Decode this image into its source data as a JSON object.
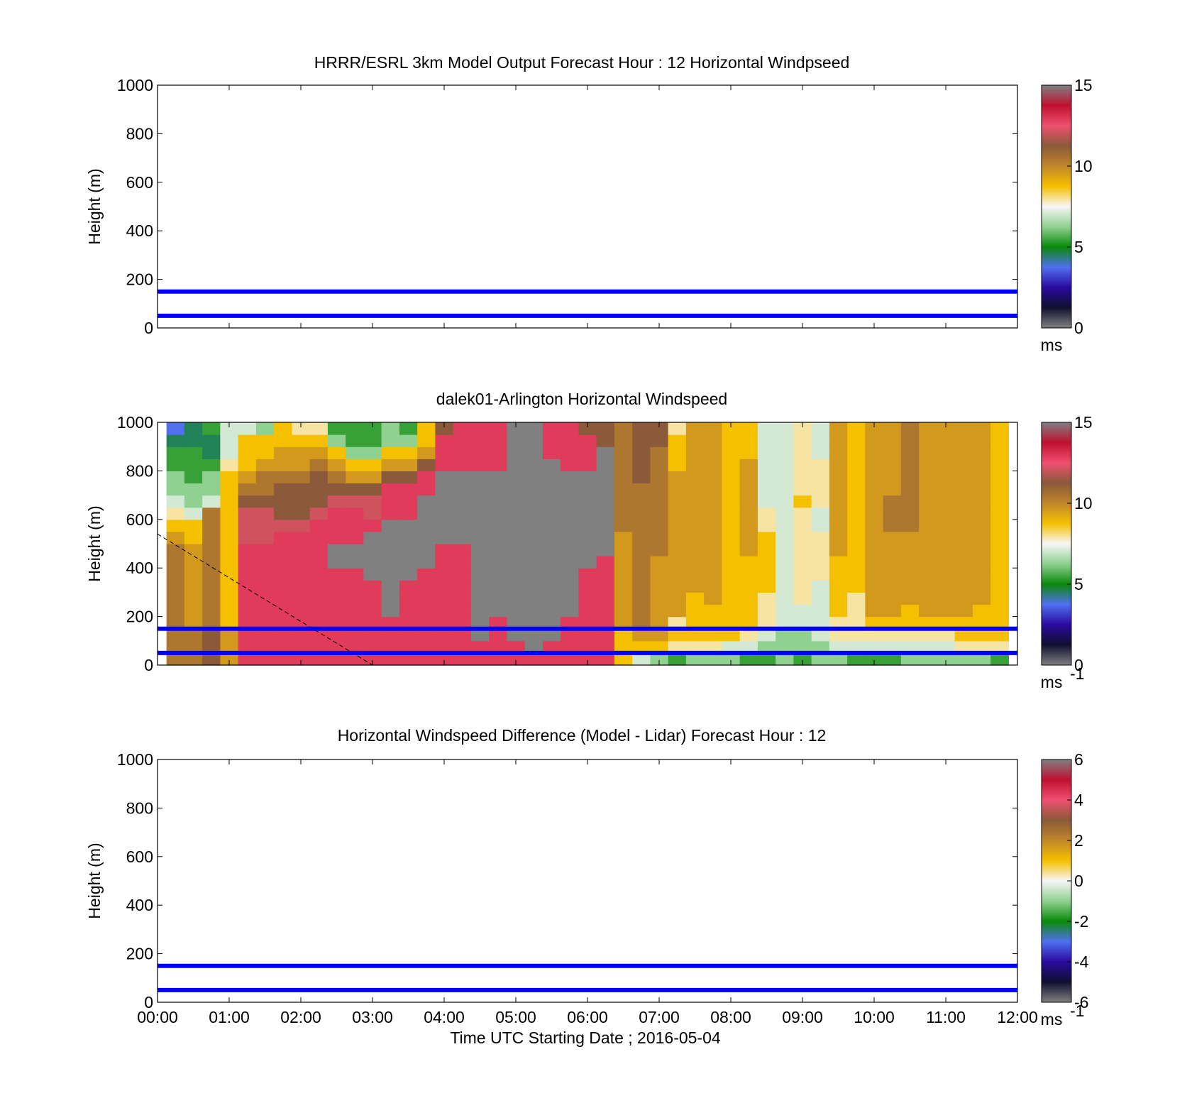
{
  "colors": {
    "background": "#ffffff",
    "axis": "#000000",
    "marker_lines": "#0000ff",
    "missing": "#808080"
  },
  "chart_data": [
    {
      "type": "heatmap",
      "title": "HRRR/ESRL 3km Model Output   Forecast Hour : 12 Horizontal Windpseed",
      "ylabel": "Height (m)",
      "xlabel": "",
      "xlim": [
        "00:00",
        "12:00"
      ],
      "ylim": [
        0,
        1000
      ],
      "yticks": [
        "0",
        "200",
        "400",
        "600",
        "800",
        "1000"
      ],
      "reference_lines_m": [
        50,
        150
      ],
      "colorbar": {
        "range": [
          0,
          15
        ],
        "ticks": [
          "0",
          "5",
          "10",
          "15"
        ],
        "unit": "ms",
        "unit_superscript": "",
        "stops": [
          "#808080",
          "#101030",
          "#2a0aa0",
          "#5070f0",
          "#0a8a0a",
          "#90d090",
          "#f6f6f6",
          "#f5c000",
          "#c0862a",
          "#8a5a3a",
          "#f05070",
          "#c01030",
          "#808080"
        ]
      },
      "values": []
    },
    {
      "type": "heatmap",
      "title": "dalek01-Arlington  Horizontal Windspeed",
      "ylabel": "Height (m)",
      "xlabel": "",
      "xlim": [
        "00:00",
        "12:00"
      ],
      "ylim": [
        0,
        1000
      ],
      "yticks": [
        "0",
        "200",
        "400",
        "600",
        "800",
        "1000"
      ],
      "reference_lines_m": [
        50,
        150
      ],
      "colorbar": {
        "range": [
          0,
          15
        ],
        "ticks": [
          "0",
          "5",
          "10",
          "15"
        ],
        "unit": "ms",
        "unit_superscript": "-1",
        "stops": [
          "#808080",
          "#101030",
          "#2a0aa0",
          "#5070f0",
          "#0a8a0a",
          "#90d090",
          "#f6f6f6",
          "#f5c000",
          "#c0862a",
          "#8a5a3a",
          "#f05070",
          "#c01030",
          "#808080"
        ]
      },
      "time_hours": [
        0.25,
        0.5,
        0.75,
        1.0,
        1.25,
        1.5,
        1.75,
        2.0,
        2.25,
        2.5,
        2.75,
        3.0,
        3.25,
        3.5,
        3.75,
        4.0,
        4.25,
        4.5,
        4.75,
        5.0,
        5.25,
        5.5,
        5.75,
        6.0,
        6.25,
        6.5,
        6.75,
        7.0,
        7.25,
        7.5,
        7.75,
        8.0,
        8.25,
        8.5,
        8.75,
        9.0,
        9.25,
        9.5,
        9.75,
        10.0,
        10.25,
        10.5,
        10.75,
        11.0,
        11.25,
        11.5,
        11.75
      ],
      "height_m": [
        25,
        75,
        125,
        175,
        225,
        275,
        325,
        375,
        425,
        475,
        525,
        575,
        625,
        675,
        725,
        775,
        825,
        875,
        925,
        975
      ],
      "windspeed_profiles_ms": [
        [
          11,
          11,
          11,
          11,
          11,
          11,
          11,
          11,
          11,
          11,
          10,
          9,
          8,
          7,
          6,
          6,
          5,
          5,
          4,
          3
        ],
        [
          11,
          11,
          11,
          10,
          10,
          10,
          10,
          10,
          10,
          10,
          9,
          9,
          7,
          6,
          6,
          5,
          5,
          5,
          4,
          4
        ],
        [
          12,
          12,
          12,
          11,
          11,
          11,
          11,
          11,
          11,
          11,
          11,
          11,
          11,
          7,
          6,
          6,
          5,
          4,
          4,
          5
        ],
        [
          10,
          10,
          10,
          9,
          9,
          9,
          9,
          9,
          9,
          9,
          9,
          9,
          9,
          9,
          9,
          9,
          8,
          7,
          7,
          7
        ],
        [
          14,
          14,
          14,
          14,
          14,
          14,
          14,
          14,
          14,
          14,
          13,
          13,
          13,
          12,
          11,
          10,
          9,
          9,
          9,
          7
        ],
        [
          14,
          14,
          14,
          14,
          14,
          14,
          14,
          14,
          14,
          14,
          13,
          13,
          13,
          12,
          11,
          11,
          10,
          9,
          9,
          6
        ],
        [
          14,
          14,
          14,
          14,
          14,
          14,
          14,
          14,
          14,
          14,
          14,
          13,
          12,
          12,
          12,
          11,
          10,
          10,
          9,
          9
        ],
        [
          14,
          14,
          14,
          14,
          14,
          14,
          14,
          14,
          14,
          14,
          14,
          13,
          12,
          12,
          12,
          11,
          10,
          10,
          9,
          8
        ],
        [
          14,
          14,
          14,
          14,
          14,
          14,
          14,
          14,
          14,
          14,
          14,
          14,
          13,
          12,
          12,
          12,
          11,
          10,
          9,
          8
        ],
        [
          14,
          14,
          14,
          14,
          14,
          14,
          14,
          14,
          null,
          null,
          14,
          14,
          14,
          13,
          12,
          11,
          10,
          9,
          6,
          5
        ],
        [
          14,
          14,
          14,
          14,
          14,
          14,
          14,
          14,
          null,
          null,
          14,
          14,
          14,
          13,
          12,
          10,
          9,
          6,
          5,
          5
        ],
        [
          14,
          14,
          14,
          14,
          14,
          14,
          14,
          null,
          null,
          null,
          null,
          14,
          13,
          13,
          12,
          10,
          9,
          6,
          5,
          5
        ],
        [
          14,
          14,
          14,
          14,
          null,
          null,
          null,
          null,
          null,
          null,
          null,
          null,
          14,
          14,
          14,
          12,
          10,
          9,
          6,
          6
        ],
        [
          14,
          14,
          14,
          14,
          14,
          14,
          14,
          null,
          null,
          null,
          null,
          null,
          14,
          14,
          14,
          12,
          10,
          9,
          6,
          5
        ],
        [
          14,
          14,
          14,
          14,
          14,
          14,
          14,
          14,
          null,
          null,
          null,
          null,
          null,
          null,
          14,
          14,
          12,
          10,
          9,
          9
        ],
        [
          14,
          14,
          14,
          14,
          14,
          14,
          14,
          14,
          14,
          14,
          null,
          null,
          null,
          null,
          null,
          null,
          14,
          14,
          14,
          12
        ],
        [
          14,
          14,
          14,
          14,
          14,
          14,
          14,
          14,
          14,
          14,
          null,
          null,
          null,
          null,
          null,
          null,
          14,
          14,
          14,
          14
        ],
        [
          14,
          14,
          null,
          null,
          null,
          null,
          null,
          null,
          null,
          null,
          null,
          null,
          null,
          null,
          null,
          null,
          14,
          14,
          14,
          14
        ],
        [
          14,
          14,
          14,
          14,
          null,
          null,
          null,
          null,
          null,
          null,
          null,
          null,
          null,
          null,
          null,
          null,
          14,
          14,
          14,
          14
        ],
        [
          14,
          14,
          null,
          null,
          null,
          null,
          null,
          null,
          null,
          null,
          null,
          null,
          null,
          null,
          null,
          null,
          null,
          null,
          null,
          null
        ],
        [
          14,
          null,
          null,
          null,
          null,
          null,
          null,
          null,
          null,
          null,
          null,
          null,
          null,
          null,
          null,
          null,
          null,
          null,
          null,
          null
        ],
        [
          14,
          14,
          null,
          null,
          null,
          null,
          null,
          null,
          null,
          null,
          null,
          null,
          null,
          null,
          null,
          null,
          null,
          14,
          14,
          14
        ],
        [
          14,
          14,
          14,
          14,
          null,
          null,
          null,
          null,
          null,
          null,
          null,
          null,
          null,
          null,
          null,
          null,
          14,
          14,
          14,
          14
        ],
        [
          14,
          14,
          14,
          14,
          14,
          14,
          14,
          14,
          null,
          null,
          null,
          null,
          null,
          null,
          null,
          null,
          14,
          14,
          14,
          12
        ],
        [
          14,
          14,
          14,
          14,
          14,
          14,
          14,
          14,
          14,
          null,
          null,
          null,
          null,
          null,
          null,
          null,
          null,
          null,
          12,
          12
        ],
        [
          9,
          9,
          9,
          10,
          10,
          10,
          10,
          10,
          10,
          10,
          10,
          11,
          11,
          11,
          11,
          11,
          11,
          11,
          11,
          11
        ],
        [
          7,
          9,
          10,
          11,
          11,
          11,
          11,
          11,
          11,
          11,
          11,
          11,
          11,
          11,
          11,
          12,
          12,
          12,
          12,
          12
        ],
        [
          6,
          9,
          10,
          10,
          10,
          10,
          10,
          10,
          10,
          11,
          11,
          11,
          11,
          11,
          11,
          11,
          11,
          11,
          12,
          12
        ],
        [
          5,
          8,
          9,
          8,
          10,
          10,
          10,
          10,
          10,
          10,
          10,
          10,
          10,
          10,
          10,
          10,
          9,
          9,
          9,
          8
        ],
        [
          6,
          8,
          9,
          9,
          9,
          9,
          10,
          10,
          10,
          10,
          10,
          10,
          10,
          10,
          10,
          10,
          10,
          10,
          10,
          10
        ],
        [
          6,
          8,
          9,
          9,
          9,
          10,
          10,
          10,
          10,
          10,
          10,
          10,
          10,
          10,
          10,
          10,
          10,
          10,
          10,
          10
        ],
        [
          6,
          7,
          9,
          9,
          9,
          9,
          9,
          9,
          9,
          9,
          9,
          9,
          9,
          9,
          9,
          9,
          9,
          9,
          9,
          9
        ],
        [
          5,
          7,
          8,
          9,
          9,
          9,
          9,
          9,
          9,
          10,
          10,
          10,
          10,
          10,
          10,
          10,
          10,
          9,
          9,
          9
        ],
        [
          5,
          6,
          7,
          8,
          8,
          8,
          9,
          9,
          9,
          9,
          9,
          8,
          8,
          7,
          7,
          7,
          7,
          7,
          7,
          7
        ],
        [
          6,
          6,
          6,
          7,
          7,
          7,
          7,
          7,
          7,
          7,
          7,
          7,
          7,
          7,
          7,
          7,
          7,
          7,
          7,
          7
        ],
        [
          5,
          6,
          6,
          7,
          7,
          8,
          8,
          8,
          8,
          8,
          8,
          8,
          8,
          9,
          8,
          8,
          8,
          8,
          8,
          8
        ],
        [
          6,
          6,
          7,
          7,
          7,
          7,
          7,
          8,
          8,
          8,
          8,
          7,
          7,
          8,
          8,
          8,
          8,
          7,
          7,
          7
        ],
        [
          6,
          7,
          8,
          8,
          9,
          9,
          9,
          9,
          9,
          10,
          10,
          10,
          10,
          10,
          10,
          10,
          10,
          10,
          10,
          10
        ],
        [
          5,
          7,
          8,
          8,
          8,
          8,
          9,
          9,
          9,
          9,
          9,
          9,
          9,
          9,
          9,
          9,
          9,
          9,
          9,
          9
        ],
        [
          5,
          7,
          8,
          9,
          10,
          10,
          10,
          10,
          10,
          10,
          10,
          10,
          10,
          10,
          10,
          10,
          10,
          10,
          10,
          10
        ],
        [
          5,
          7,
          8,
          9,
          10,
          10,
          10,
          10,
          10,
          10,
          10,
          11,
          11,
          11,
          10,
          10,
          10,
          10,
          10,
          10
        ],
        [
          6,
          7,
          8,
          9,
          9,
          10,
          10,
          10,
          10,
          10,
          10,
          11,
          11,
          11,
          11,
          11,
          11,
          11,
          11,
          11
        ],
        [
          6,
          7,
          8,
          9,
          10,
          10,
          10,
          10,
          10,
          10,
          10,
          10,
          10,
          10,
          10,
          10,
          10,
          10,
          10,
          10
        ],
        [
          6,
          7,
          8,
          9,
          10,
          10,
          10,
          10,
          10,
          10,
          10,
          10,
          10,
          10,
          10,
          10,
          10,
          10,
          10,
          10
        ],
        [
          6,
          8,
          9,
          9,
          10,
          10,
          10,
          10,
          10,
          10,
          10,
          10,
          10,
          10,
          10,
          10,
          10,
          10,
          10,
          10
        ],
        [
          6,
          8,
          9,
          9,
          9,
          10,
          10,
          10,
          10,
          10,
          10,
          10,
          10,
          10,
          10,
          10,
          10,
          10,
          10,
          10
        ],
        [
          5,
          8,
          9,
          9,
          9,
          9,
          9,
          9,
          9,
          9,
          9,
          9,
          9,
          9,
          9,
          9,
          9,
          9,
          9,
          9
        ]
      ],
      "dashed_line": {
        "from": {
          "time": "00:00",
          "height_m": 540
        },
        "to": {
          "time": "03:00",
          "height_m": 0
        }
      }
    },
    {
      "type": "heatmap",
      "title": "Horizontal Windspeed Difference (Model - Lidar) Forecast Hour : 12",
      "ylabel": "Height (m)",
      "xlabel": "Time UTC  Starting Date ; 2016-05-04",
      "xlim": [
        "00:00",
        "12:00"
      ],
      "xticks": [
        "00:00",
        "01:00",
        "02:00",
        "03:00",
        "04:00",
        "05:00",
        "06:00",
        "07:00",
        "08:00",
        "09:00",
        "10:00",
        "11:00",
        "12:00"
      ],
      "ylim": [
        0,
        1000
      ],
      "yticks": [
        "0",
        "200",
        "400",
        "600",
        "800",
        "1000"
      ],
      "reference_lines_m": [
        50,
        150
      ],
      "colorbar": {
        "range": [
          -6,
          6
        ],
        "ticks": [
          "-6",
          "-4",
          "-2",
          "0",
          "2",
          "4",
          "6"
        ],
        "unit": "ms",
        "unit_superscript": "-1",
        "stops": [
          "#808080",
          "#101030",
          "#2a0aa0",
          "#5070f0",
          "#0a8a0a",
          "#90d090",
          "#f6f6f6",
          "#f5c000",
          "#c0862a",
          "#8a5a3a",
          "#f05070",
          "#c01030",
          "#808080"
        ]
      },
      "values": []
    }
  ]
}
